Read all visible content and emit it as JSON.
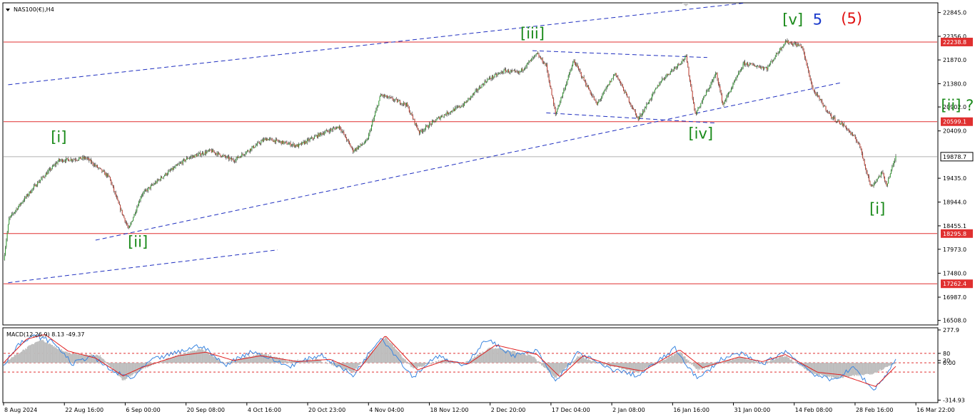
{
  "chart_data": {
    "type": "candlestick",
    "symbol_label": "NAS100(€),H4",
    "price_ticks": [
      "22845.0",
      "22356.0",
      "21870.0",
      "21380.0",
      "20902.0",
      "20409.0",
      "19435.0",
      "18944.0",
      "18455.1",
      "17973.0",
      "17480.0",
      "16987.0",
      "16508.0"
    ],
    "price_range": [
      16430,
      23030
    ],
    "time_ticks": [
      "8 Aug 2024",
      "22 Aug 16:00",
      "6 Sep 00:00",
      "20 Sep 08:00",
      "4 Oct 16:00",
      "20 Oct 23:00",
      "4 Nov 04:00",
      "18 Nov 12:00",
      "2 Dec 20:00",
      "17 Dec 04:00",
      "2 Jan 08:00",
      "16 Jan 16:00",
      "31 Jan 00:00",
      "14 Feb 08:00",
      "28 Feb 16:00",
      "16 Mar 22:00"
    ],
    "horizontal_levels": [
      {
        "value": 22238.8,
        "label": "22238.8"
      },
      {
        "value": 20599.1,
        "label": "20599.1"
      },
      {
        "value": 18295.8,
        "label": "18295.8"
      },
      {
        "value": 17262.4,
        "label": "17262.4"
      }
    ],
    "current_price": {
      "value": 19878.7,
      "label": "19878.7"
    },
    "price_path": [
      {
        "bar": 0,
        "price": 17750
      },
      {
        "bar": 6,
        "price": 18600
      },
      {
        "bar": 18,
        "price": 18900
      },
      {
        "bar": 35,
        "price": 19300
      },
      {
        "bar": 60,
        "price": 19800
      },
      {
        "bar": 90,
        "price": 19850
      },
      {
        "bar": 115,
        "price": 19450
      },
      {
        "bar": 125,
        "price": 18900
      },
      {
        "bar": 136,
        "price": 18380
      },
      {
        "bar": 150,
        "price": 19100
      },
      {
        "bar": 175,
        "price": 19500
      },
      {
        "bar": 200,
        "price": 19850
      },
      {
        "bar": 225,
        "price": 20000
      },
      {
        "bar": 250,
        "price": 19800
      },
      {
        "bar": 285,
        "price": 20250
      },
      {
        "bar": 320,
        "price": 20100
      },
      {
        "bar": 345,
        "price": 20350
      },
      {
        "bar": 365,
        "price": 20500
      },
      {
        "bar": 380,
        "price": 20000
      },
      {
        "bar": 395,
        "price": 20200
      },
      {
        "bar": 410,
        "price": 21150
      },
      {
        "bar": 438,
        "price": 20950
      },
      {
        "bar": 452,
        "price": 20380
      },
      {
        "bar": 475,
        "price": 20700
      },
      {
        "bar": 500,
        "price": 20950
      },
      {
        "bar": 525,
        "price": 21450
      },
      {
        "bar": 545,
        "price": 21650
      },
      {
        "bar": 560,
        "price": 21600
      },
      {
        "bar": 580,
        "price": 21990
      },
      {
        "bar": 590,
        "price": 21750
      },
      {
        "bar": 600,
        "price": 20750
      },
      {
        "bar": 620,
        "price": 21850
      },
      {
        "bar": 645,
        "price": 20950
      },
      {
        "bar": 665,
        "price": 21600
      },
      {
        "bar": 690,
        "price": 20650
      },
      {
        "bar": 715,
        "price": 21450
      },
      {
        "bar": 742,
        "price": 21930
      },
      {
        "bar": 752,
        "price": 20750
      },
      {
        "bar": 775,
        "price": 21600
      },
      {
        "bar": 782,
        "price": 20950
      },
      {
        "bar": 805,
        "price": 21800
      },
      {
        "bar": 830,
        "price": 21700
      },
      {
        "bar": 850,
        "price": 22250
      },
      {
        "bar": 868,
        "price": 22150
      },
      {
        "bar": 880,
        "price": 21250
      },
      {
        "bar": 900,
        "price": 20700
      },
      {
        "bar": 915,
        "price": 20500
      },
      {
        "bar": 930,
        "price": 20150
      },
      {
        "bar": 943,
        "price": 19250
      },
      {
        "bar": 955,
        "price": 19550
      },
      {
        "bar": 960,
        "price": 19300
      },
      {
        "bar": 970,
        "price": 19880
      }
    ],
    "wave_labels": [
      {
        "text": "[i]",
        "bar": 60,
        "price": 20180,
        "color": "#1a8a1a"
      },
      {
        "text": "[ii]",
        "bar": 146,
        "price": 18020,
        "color": "#1a8a1a"
      },
      {
        "text": "[iii]",
        "bar": 575,
        "price": 22310,
        "color": "#1a8a1a"
      },
      {
        "text": "[iv]",
        "bar": 758,
        "price": 20250,
        "color": "#1a8a1a"
      },
      {
        "text": "[v]",
        "bar": 858,
        "price": 22600,
        "color": "#1a8a1a"
      },
      {
        "text": "5",
        "bar": 885,
        "price": 22600,
        "color": "#1a3acb"
      },
      {
        "text": "(5)",
        "bar": 922,
        "price": 22620,
        "color": "#e01010"
      },
      {
        "text": "[ii] ?",
        "bar": 1037,
        "price": 20830,
        "color": "#1a8a1a"
      },
      {
        "text": "[i]",
        "bar": 950,
        "price": 18700,
        "color": "#1a8a1a"
      }
    ],
    "trend_lines": [
      {
        "points": [
          [
            5,
            21360
          ],
          [
            805,
            23040
          ]
        ]
      },
      {
        "points": [
          [
            5,
            17285
          ],
          [
            298,
            17960
          ]
        ]
      },
      {
        "points": [
          [
            100,
            18160
          ],
          [
            910,
            21400
          ]
        ]
      },
      {
        "points": [
          [
            575,
            22060
          ],
          [
            765,
            21920
          ]
        ]
      },
      {
        "points": [
          [
            590,
            20780
          ],
          [
            775,
            20570
          ]
        ]
      }
    ],
    "macd": {
      "label": "MACD(12,26,9) 8.13 -49.37",
      "ticks": [
        "277.9",
        "80",
        "0.00",
        "20",
        "-314.93"
      ],
      "range": [
        -330,
        290
      ],
      "levels": [
        80,
        0,
        -78
      ],
      "hist_path": [
        {
          "bar": 0,
          "value": 0
        },
        {
          "bar": 18,
          "value": 90
        },
        {
          "bar": 40,
          "value": 200
        },
        {
          "bar": 70,
          "value": 80
        },
        {
          "bar": 105,
          "value": 60
        },
        {
          "bar": 130,
          "value": -150
        },
        {
          "bar": 150,
          "value": -50
        },
        {
          "bar": 180,
          "value": 40
        },
        {
          "bar": 215,
          "value": 120
        },
        {
          "bar": 240,
          "value": 0
        },
        {
          "bar": 280,
          "value": 80
        },
        {
          "bar": 310,
          "value": 20
        },
        {
          "bar": 340,
          "value": 30
        },
        {
          "bar": 380,
          "value": -80
        },
        {
          "bar": 415,
          "value": 220
        },
        {
          "bar": 445,
          "value": -50
        },
        {
          "bar": 480,
          "value": 30
        },
        {
          "bar": 500,
          "value": -10
        },
        {
          "bar": 530,
          "value": 130
        },
        {
          "bar": 575,
          "value": 60
        },
        {
          "bar": 600,
          "value": -130
        },
        {
          "bar": 625,
          "value": 60
        },
        {
          "bar": 650,
          "value": -10
        },
        {
          "bar": 690,
          "value": -80
        },
        {
          "bar": 735,
          "value": 90
        },
        {
          "bar": 755,
          "value": -60
        },
        {
          "bar": 800,
          "value": 50
        },
        {
          "bar": 825,
          "value": 0
        },
        {
          "bar": 850,
          "value": 60
        },
        {
          "bar": 880,
          "value": -90
        },
        {
          "bar": 905,
          "value": -130
        },
        {
          "bar": 945,
          "value": -90
        },
        {
          "bar": 970,
          "value": 0
        }
      ],
      "main_path": [
        {
          "bar": 0,
          "value": -20
        },
        {
          "bar": 15,
          "value": 150
        },
        {
          "bar": 35,
          "value": 230
        },
        {
          "bar": 55,
          "value": 170
        },
        {
          "bar": 75,
          "value": -10
        },
        {
          "bar": 95,
          "value": 60
        },
        {
          "bar": 120,
          "value": -80
        },
        {
          "bar": 140,
          "value": -130
        },
        {
          "bar": 160,
          "value": 20
        },
        {
          "bar": 190,
          "value": 90
        },
        {
          "bar": 215,
          "value": 150
        },
        {
          "bar": 240,
          "value": -20
        },
        {
          "bar": 270,
          "value": 100
        },
        {
          "bar": 310,
          "value": -30
        },
        {
          "bar": 345,
          "value": 70
        },
        {
          "bar": 380,
          "value": -110
        },
        {
          "bar": 410,
          "value": 220
        },
        {
          "bar": 445,
          "value": -120
        },
        {
          "bar": 470,
          "value": 60
        },
        {
          "bar": 500,
          "value": -30
        },
        {
          "bar": 525,
          "value": 200
        },
        {
          "bar": 555,
          "value": 60
        },
        {
          "bar": 580,
          "value": 100
        },
        {
          "bar": 600,
          "value": -160
        },
        {
          "bar": 625,
          "value": 90
        },
        {
          "bar": 655,
          "value": -40
        },
        {
          "bar": 690,
          "value": -110
        },
        {
          "bar": 730,
          "value": 120
        },
        {
          "bar": 755,
          "value": -140
        },
        {
          "bar": 780,
          "value": 30
        },
        {
          "bar": 800,
          "value": 80
        },
        {
          "bar": 825,
          "value": -10
        },
        {
          "bar": 850,
          "value": 100
        },
        {
          "bar": 880,
          "value": -90
        },
        {
          "bar": 900,
          "value": -150
        },
        {
          "bar": 925,
          "value": -40
        },
        {
          "bar": 945,
          "value": -230
        },
        {
          "bar": 958,
          "value": -120
        },
        {
          "bar": 970,
          "value": 30
        }
      ],
      "signal_path": [
        {
          "bar": 0,
          "value": 0
        },
        {
          "bar": 25,
          "value": 200
        },
        {
          "bar": 45,
          "value": 240
        },
        {
          "bar": 70,
          "value": 100
        },
        {
          "bar": 100,
          "value": 40
        },
        {
          "bar": 130,
          "value": -110
        },
        {
          "bar": 150,
          "value": -40
        },
        {
          "bar": 190,
          "value": 60
        },
        {
          "bar": 220,
          "value": 90
        },
        {
          "bar": 250,
          "value": 20
        },
        {
          "bar": 280,
          "value": 60
        },
        {
          "bar": 320,
          "value": 10
        },
        {
          "bar": 355,
          "value": 30
        },
        {
          "bar": 385,
          "value": -70
        },
        {
          "bar": 415,
          "value": 230
        },
        {
          "bar": 450,
          "value": -60
        },
        {
          "bar": 480,
          "value": 20
        },
        {
          "bar": 505,
          "value": -10
        },
        {
          "bar": 535,
          "value": 150
        },
        {
          "bar": 580,
          "value": 70
        },
        {
          "bar": 605,
          "value": -120
        },
        {
          "bar": 630,
          "value": 60
        },
        {
          "bar": 660,
          "value": -20
        },
        {
          "bar": 695,
          "value": -70
        },
        {
          "bar": 735,
          "value": 110
        },
        {
          "bar": 760,
          "value": -40
        },
        {
          "bar": 800,
          "value": 50
        },
        {
          "bar": 825,
          "value": 10
        },
        {
          "bar": 850,
          "value": 70
        },
        {
          "bar": 885,
          "value": -80
        },
        {
          "bar": 910,
          "value": -100
        },
        {
          "bar": 948,
          "value": -200
        },
        {
          "bar": 970,
          "value": -30
        }
      ]
    }
  },
  "colors": {
    "bull": "#2e9c2e",
    "bear": "#c0392b",
    "wick": "#1a1a1a",
    "level": "#e03030",
    "trend": "#2030c0",
    "macd_main": "#3a86e0",
    "macd_signal": "#e02020",
    "macd_hist": "#bdbdbd"
  }
}
